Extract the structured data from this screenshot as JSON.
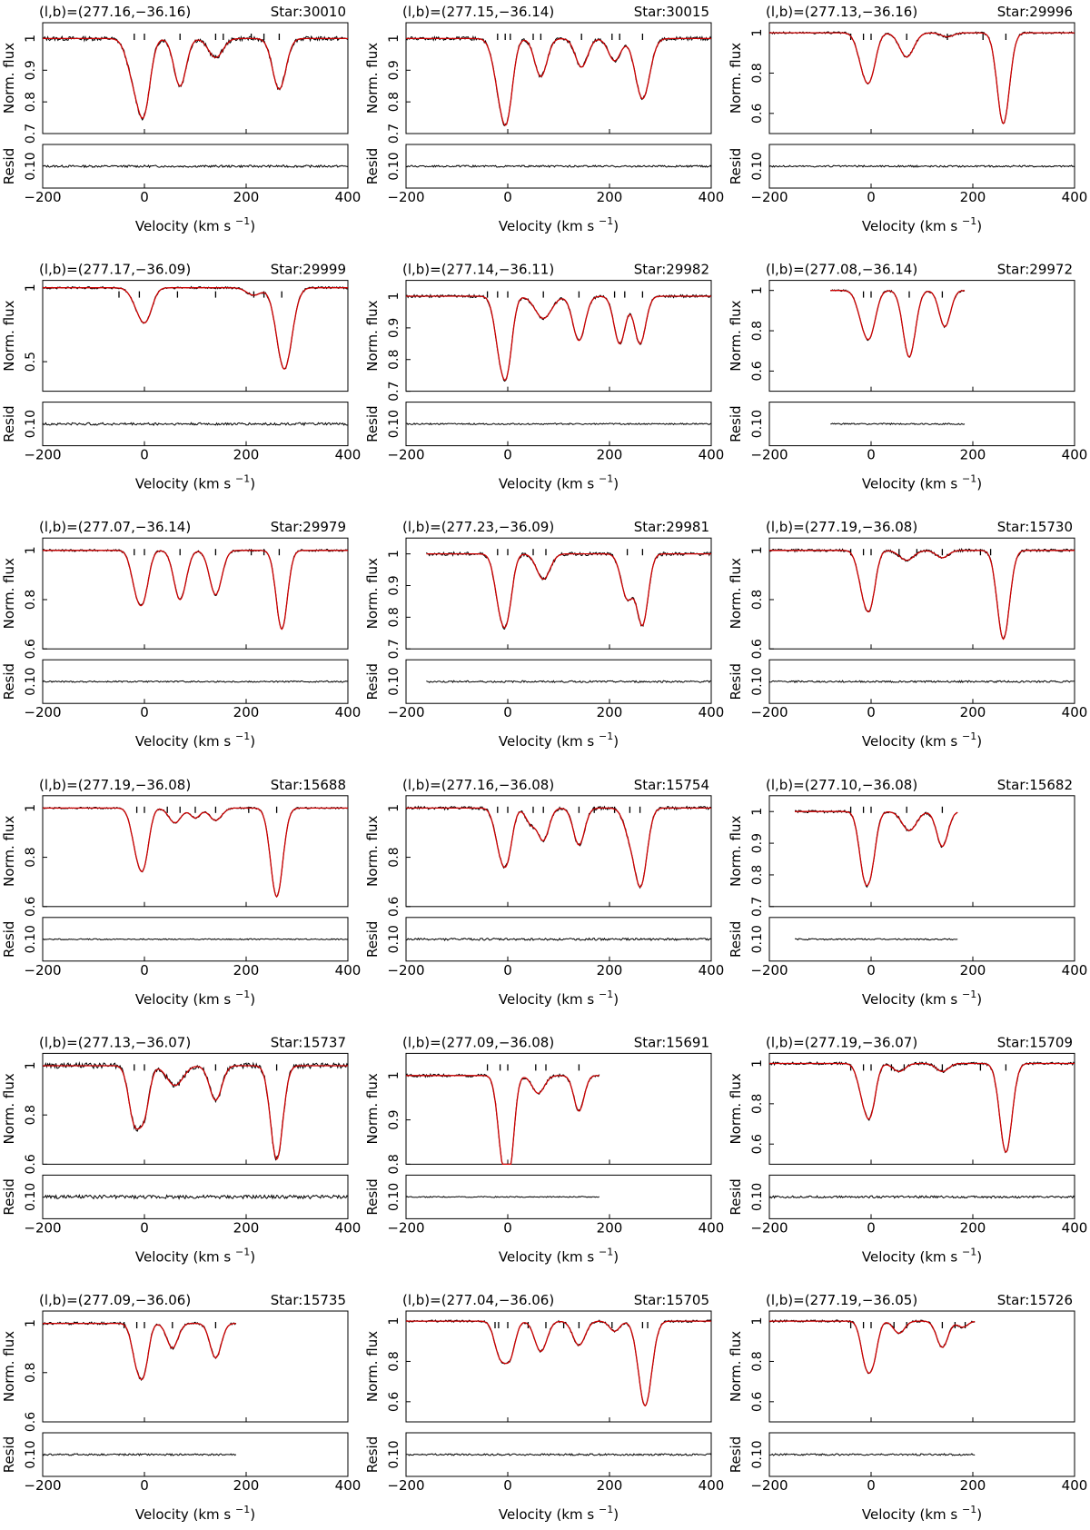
{
  "figure": {
    "labels": {
      "flux_ylabel": "Norm. flux",
      "resid_ylabel": "Resid",
      "resid_ticks": [
        "0.10",
        "0.1",
        "0.10"
      ],
      "velocity_word": "Velocity (km s",
      "velocity_exp": "−1",
      "velocity_close": ")"
    },
    "colors": {
      "data": "#000000",
      "model": "#cc0000",
      "axes": "#000000"
    }
  },
  "chart_data": [
    {
      "type": "line",
      "coords": "(l,b)=(277.16,−36.16)",
      "star": "Star:30010",
      "xlim": [
        -200,
        400
      ],
      "ylim": [
        0.7,
        1.05
      ],
      "yticks": [
        "1",
        "0.9",
        "0.8",
        "0.7"
      ],
      "xticks": [
        "−200",
        "0",
        "200",
        "400"
      ],
      "data_range": [
        -200,
        400
      ],
      "ticks": [
        -20,
        0,
        70,
        140,
        155,
        210,
        235,
        265
      ],
      "lines": [
        {
          "v": -20,
          "d": 0.12,
          "w": 14
        },
        {
          "v": 0,
          "d": 0.2,
          "w": 12
        },
        {
          "v": 70,
          "d": 0.15,
          "w": 12
        },
        {
          "v": 140,
          "d": 0.06,
          "w": 14
        },
        {
          "v": 265,
          "d": 0.16,
          "w": 13
        }
      ],
      "resid_noise": 0.006
    },
    {
      "type": "line",
      "coords": "(l,b)=(277.15,−36.14)",
      "star": "Star:30015",
      "xlim": [
        -200,
        400
      ],
      "ylim": [
        0.7,
        1.05
      ],
      "yticks": [
        "1",
        "0.9",
        "0.8",
        "0.7"
      ],
      "xticks": [
        "−200",
        "0",
        "200",
        "400"
      ],
      "data_range": [
        -200,
        400
      ],
      "ticks": [
        -20,
        -5,
        5,
        50,
        65,
        145,
        205,
        220,
        265
      ],
      "lines": [
        {
          "v": -15,
          "d": 0.15,
          "w": 13
        },
        {
          "v": 0,
          "d": 0.18,
          "w": 11
        },
        {
          "v": 65,
          "d": 0.12,
          "w": 12
        },
        {
          "v": 145,
          "d": 0.09,
          "w": 12
        },
        {
          "v": 210,
          "d": 0.07,
          "w": 12
        },
        {
          "v": 265,
          "d": 0.19,
          "w": 14
        }
      ],
      "resid_noise": 0.005
    },
    {
      "type": "line",
      "coords": "(l,b)=(277.13,−36.16)",
      "star": "Star:29996",
      "xlim": [
        -200,
        400
      ],
      "ylim": [
        0.5,
        1.05
      ],
      "yticks": [
        "1",
        "0.8",
        "0.6"
      ],
      "xticks": [
        "−200",
        "0",
        "200",
        "400"
      ],
      "data_range": [
        -200,
        400
      ],
      "ticks": [
        -40,
        -15,
        0,
        70,
        150,
        220,
        265
      ],
      "lines": [
        {
          "v": -15,
          "d": 0.15,
          "w": 12
        },
        {
          "v": 0,
          "d": 0.16,
          "w": 11
        },
        {
          "v": 70,
          "d": 0.12,
          "w": 14
        },
        {
          "v": 150,
          "d": 0.02,
          "w": 12
        },
        {
          "v": 260,
          "d": 0.45,
          "w": 12
        }
      ],
      "resid_noise": 0.005
    },
    {
      "type": "line",
      "coords": "(l,b)=(277.17,−36.09)",
      "star": "Star:29999",
      "xlim": [
        -200,
        400
      ],
      "ylim": [
        0.3,
        1.05
      ],
      "yticks": [
        "1",
        "0.5"
      ],
      "xticks": [
        "−200",
        "0",
        "200",
        "400"
      ],
      "data_range": [
        -200,
        400
      ],
      "ticks": [
        -50,
        -10,
        65,
        140,
        215,
        235,
        270
      ],
      "lines": [
        {
          "v": -10,
          "d": 0.13,
          "w": 14
        },
        {
          "v": 5,
          "d": 0.15,
          "w": 12
        },
        {
          "v": 215,
          "d": 0.05,
          "w": 14
        },
        {
          "v": 275,
          "d": 0.55,
          "w": 15
        }
      ],
      "resid_noise": 0.007
    },
    {
      "type": "line",
      "coords": "(l,b)=(277.14,−36.11)",
      "star": "Star:29982",
      "xlim": [
        -200,
        400
      ],
      "ylim": [
        0.7,
        1.05
      ],
      "yticks": [
        "1",
        "0.9",
        "0.8",
        "0.7"
      ],
      "xticks": [
        "−200",
        "0",
        "200",
        "400"
      ],
      "data_range": [
        -200,
        400
      ],
      "ticks": [
        -40,
        -20,
        0,
        70,
        140,
        210,
        230,
        265
      ],
      "lines": [
        {
          "v": -15,
          "d": 0.16,
          "w": 11
        },
        {
          "v": 0,
          "d": 0.18,
          "w": 10
        },
        {
          "v": 70,
          "d": 0.07,
          "w": 16
        },
        {
          "v": 140,
          "d": 0.14,
          "w": 12
        },
        {
          "v": 220,
          "d": 0.15,
          "w": 11
        },
        {
          "v": 260,
          "d": 0.15,
          "w": 11
        }
      ],
      "resid_noise": 0.004
    },
    {
      "type": "line",
      "coords": "(l,b)=(277.08,−36.14)",
      "star": "Star:29972",
      "xlim": [
        -200,
        400
      ],
      "ylim": [
        0.5,
        1.05
      ],
      "yticks": [
        "1",
        "0.8",
        "0.6"
      ],
      "xticks": [
        "−200",
        "0",
        "200",
        "400"
      ],
      "data_range": [
        -80,
        185
      ],
      "ticks": [
        -15,
        0,
        75,
        140
      ],
      "lines": [
        {
          "v": -15,
          "d": 0.14,
          "w": 12
        },
        {
          "v": 0,
          "d": 0.16,
          "w": 11
        },
        {
          "v": 75,
          "d": 0.33,
          "w": 12
        },
        {
          "v": 145,
          "d": 0.18,
          "w": 11
        }
      ],
      "resid_noise": 0.004
    },
    {
      "type": "line",
      "coords": "(l,b)=(277.07,−36.14)",
      "star": "Star:29979",
      "xlim": [
        -200,
        400
      ],
      "ylim": [
        0.6,
        1.05
      ],
      "yticks": [
        "1",
        "0.8",
        "0.6"
      ],
      "xticks": [
        "−200",
        "0",
        "200",
        "400"
      ],
      "data_range": [
        -200,
        400
      ],
      "ticks": [
        -20,
        0,
        70,
        140,
        210,
        235,
        265
      ],
      "lines": [
        {
          "v": -15,
          "d": 0.15,
          "w": 11
        },
        {
          "v": 0,
          "d": 0.14,
          "w": 10
        },
        {
          "v": 70,
          "d": 0.2,
          "w": 12
        },
        {
          "v": 140,
          "d": 0.18,
          "w": 12
        },
        {
          "v": 270,
          "d": 0.32,
          "w": 11
        }
      ],
      "resid_noise": 0.004
    },
    {
      "type": "line",
      "coords": "(l,b)=(277.23,−36.09)",
      "star": "Star:29981",
      "xlim": [
        -200,
        400
      ],
      "ylim": [
        0.7,
        1.05
      ],
      "yticks": [
        "1",
        "0.9",
        "0.8",
        "0.7"
      ],
      "xticks": [
        "−200",
        "0",
        "200",
        "400"
      ],
      "data_range": [
        -160,
        400
      ],
      "ticks": [
        -20,
        0,
        50,
        75,
        235,
        265
      ],
      "lines": [
        {
          "v": -15,
          "d": 0.15,
          "w": 11
        },
        {
          "v": 0,
          "d": 0.15,
          "w": 10
        },
        {
          "v": 70,
          "d": 0.08,
          "w": 13
        },
        {
          "v": 235,
          "d": 0.14,
          "w": 12
        },
        {
          "v": 265,
          "d": 0.22,
          "w": 11
        }
      ],
      "resid_noise": 0.005
    },
    {
      "type": "line",
      "coords": "(l,b)=(277.19,−36.08)",
      "star": "Star:15730",
      "xlim": [
        -200,
        400
      ],
      "ylim": [
        0.6,
        1.05
      ],
      "yticks": [
        "1",
        "0.8",
        "0.6"
      ],
      "xticks": [
        "−200",
        "0",
        "200",
        "400"
      ],
      "data_range": [
        -200,
        400
      ],
      "ticks": [
        -40,
        -15,
        0,
        55,
        90,
        140,
        215,
        235
      ],
      "lines": [
        {
          "v": -15,
          "d": 0.15,
          "w": 11
        },
        {
          "v": 0,
          "d": 0.17,
          "w": 10
        },
        {
          "v": 70,
          "d": 0.04,
          "w": 14
        },
        {
          "v": 140,
          "d": 0.03,
          "w": 12
        },
        {
          "v": 260,
          "d": 0.36,
          "w": 12
        }
      ],
      "resid_noise": 0.005
    },
    {
      "type": "line",
      "coords": "(l,b)=(277.19,−36.08)",
      "star": "Star:15688",
      "xlim": [
        -200,
        400
      ],
      "ylim": [
        0.6,
        1.05
      ],
      "yticks": [
        "1",
        "0.8",
        "0.6"
      ],
      "xticks": [
        "−200",
        "0",
        "200",
        "400"
      ],
      "data_range": [
        -200,
        400
      ],
      "ticks": [
        -15,
        0,
        45,
        70,
        100,
        140,
        205,
        260
      ],
      "lines": [
        {
          "v": -15,
          "d": 0.15,
          "w": 11
        },
        {
          "v": 0,
          "d": 0.18,
          "w": 10
        },
        {
          "v": 60,
          "d": 0.06,
          "w": 12
        },
        {
          "v": 100,
          "d": 0.04,
          "w": 10
        },
        {
          "v": 140,
          "d": 0.05,
          "w": 12
        },
        {
          "v": 260,
          "d": 0.36,
          "w": 12
        }
      ],
      "resid_noise": 0.003
    },
    {
      "type": "line",
      "coords": "(l,b)=(277.16,−36.08)",
      "star": "Star:15754",
      "xlim": [
        -200,
        400
      ],
      "ylim": [
        0.6,
        1.05
      ],
      "yticks": [
        "1",
        "0.8",
        "0.6"
      ],
      "xticks": [
        "−200",
        "0",
        "200",
        "400"
      ],
      "data_range": [
        -200,
        400
      ],
      "ticks": [
        -20,
        0,
        50,
        70,
        140,
        170,
        210,
        240,
        260
      ],
      "lines": [
        {
          "v": -15,
          "d": 0.15,
          "w": 11
        },
        {
          "v": 0,
          "d": 0.16,
          "w": 10
        },
        {
          "v": 45,
          "d": 0.06,
          "w": 10
        },
        {
          "v": 70,
          "d": 0.13,
          "w": 11
        },
        {
          "v": 140,
          "d": 0.15,
          "w": 11
        },
        {
          "v": 240,
          "d": 0.1,
          "w": 12
        },
        {
          "v": 262,
          "d": 0.3,
          "w": 12
        }
      ],
      "resid_noise": 0.006
    },
    {
      "type": "line",
      "coords": "(l,b)=(277.10,−36.08)",
      "star": "Star:15682",
      "xlim": [
        -200,
        400
      ],
      "ylim": [
        0.7,
        1.05
      ],
      "yticks": [
        "1",
        "0.9",
        "0.8",
        "0.7"
      ],
      "xticks": [
        "−200",
        "0",
        "200",
        "400"
      ],
      "data_range": [
        -150,
        170
      ],
      "ticks": [
        -40,
        -15,
        0,
        70,
        140
      ],
      "lines": [
        {
          "v": -15,
          "d": 0.16,
          "w": 10
        },
        {
          "v": 0,
          "d": 0.15,
          "w": 10
        },
        {
          "v": 75,
          "d": 0.06,
          "w": 14
        },
        {
          "v": 140,
          "d": 0.11,
          "w": 11
        }
      ],
      "resid_noise": 0.004
    },
    {
      "type": "line",
      "coords": "(l,b)=(277.13,−36.07)",
      "star": "Star:15737",
      "xlim": [
        -200,
        400
      ],
      "ylim": [
        0.6,
        1.05
      ],
      "yticks": [
        "1",
        "0.8",
        "0.6"
      ],
      "xticks": [
        "−200",
        "0",
        "200",
        "400"
      ],
      "data_range": [
        -200,
        400
      ],
      "ticks": [
        -20,
        0,
        140,
        260
      ],
      "lines": [
        {
          "v": -20,
          "d": 0.22,
          "w": 11
        },
        {
          "v": 0,
          "d": 0.18,
          "w": 10
        },
        {
          "v": 60,
          "d": 0.08,
          "w": 16
        },
        {
          "v": 140,
          "d": 0.14,
          "w": 12
        },
        {
          "v": 260,
          "d": 0.38,
          "w": 12
        }
      ],
      "resid_noise": 0.01
    },
    {
      "type": "line",
      "coords": "(l,b)=(277.09,−36.08)",
      "star": "Star:15691",
      "xlim": [
        -200,
        400
      ],
      "ylim": [
        0.8,
        1.05
      ],
      "yticks": [
        "1",
        "0.9",
        "0.8"
      ],
      "xticks": [
        "−200",
        "0",
        "200",
        "400"
      ],
      "data_range": [
        -200,
        180
      ],
      "ticks": [
        -40,
        -15,
        0,
        55,
        75,
        140
      ],
      "lines": [
        {
          "v": -10,
          "d": 0.17,
          "w": 10
        },
        {
          "v": 5,
          "d": 0.16,
          "w": 9
        },
        {
          "v": 60,
          "d": 0.04,
          "w": 12
        },
        {
          "v": 140,
          "d": 0.08,
          "w": 10
        }
      ],
      "resid_noise": 0.003
    },
    {
      "type": "line",
      "coords": "(l,b)=(277.19,−36.07)",
      "star": "Star:15709",
      "xlim": [
        -200,
        400
      ],
      "ylim": [
        0.5,
        1.05
      ],
      "yticks": [
        "1",
        "0.8",
        "0.6"
      ],
      "xticks": [
        "−200",
        "0",
        "200",
        "400"
      ],
      "data_range": [
        -200,
        400
      ],
      "ticks": [
        -40,
        -15,
        0,
        40,
        65,
        140,
        215,
        265
      ],
      "lines": [
        {
          "v": -15,
          "d": 0.15,
          "w": 11
        },
        {
          "v": 0,
          "d": 0.2,
          "w": 10
        },
        {
          "v": 55,
          "d": 0.04,
          "w": 12
        },
        {
          "v": 140,
          "d": 0.04,
          "w": 12
        },
        {
          "v": 265,
          "d": 0.44,
          "w": 12
        }
      ],
      "resid_noise": 0.006
    },
    {
      "type": "line",
      "coords": "(l,b)=(277.09,−36.06)",
      "star": "Star:15735",
      "xlim": [
        -200,
        400
      ],
      "ylim": [
        0.6,
        1.05
      ],
      "yticks": [
        "1",
        "0.8",
        "0.6"
      ],
      "xticks": [
        "−200",
        "0",
        "200",
        "400"
      ],
      "data_range": [
        -200,
        180
      ],
      "ticks": [
        -40,
        -15,
        0,
        55,
        140
      ],
      "lines": [
        {
          "v": -15,
          "d": 0.15,
          "w": 10
        },
        {
          "v": 0,
          "d": 0.16,
          "w": 9
        },
        {
          "v": 55,
          "d": 0.1,
          "w": 11
        },
        {
          "v": 140,
          "d": 0.14,
          "w": 11
        }
      ],
      "resid_noise": 0.005
    },
    {
      "type": "line",
      "coords": "(l,b)=(277.04,−36.06)",
      "star": "Star:15705",
      "xlim": [
        -200,
        400
      ],
      "ylim": [
        0.5,
        1.05
      ],
      "yticks": [
        "1",
        "0.8",
        "0.6"
      ],
      "xticks": [
        "−200",
        "0",
        "200",
        "400"
      ],
      "data_range": [
        -200,
        400
      ],
      "ticks": [
        -25,
        -18,
        0,
        40,
        75,
        110,
        140,
        205,
        265,
        275
      ],
      "lines": [
        {
          "v": -15,
          "d": 0.17,
          "w": 11
        },
        {
          "v": 5,
          "d": 0.16,
          "w": 10
        },
        {
          "v": 65,
          "d": 0.15,
          "w": 12
        },
        {
          "v": 140,
          "d": 0.12,
          "w": 12
        },
        {
          "v": 210,
          "d": 0.05,
          "w": 10
        },
        {
          "v": 270,
          "d": 0.42,
          "w": 13
        }
      ],
      "resid_noise": 0.005
    },
    {
      "type": "line",
      "coords": "(l,b)=(277.19,−36.05)",
      "star": "Star:15726",
      "xlim": [
        -200,
        400
      ],
      "ylim": [
        0.5,
        1.05
      ],
      "yticks": [
        "1",
        "0.8",
        "0.6"
      ],
      "xticks": [
        "−200",
        "0",
        "200",
        "400"
      ],
      "data_range": [
        -200,
        205
      ],
      "ticks": [
        -40,
        -15,
        0,
        45,
        70,
        140,
        165,
        185
      ],
      "lines": [
        {
          "v": -10,
          "d": 0.2,
          "w": 10
        },
        {
          "v": 5,
          "d": 0.15,
          "w": 9
        },
        {
          "v": 55,
          "d": 0.06,
          "w": 11
        },
        {
          "v": 140,
          "d": 0.13,
          "w": 11
        },
        {
          "v": 180,
          "d": 0.03,
          "w": 10
        }
      ],
      "resid_noise": 0.005
    }
  ]
}
